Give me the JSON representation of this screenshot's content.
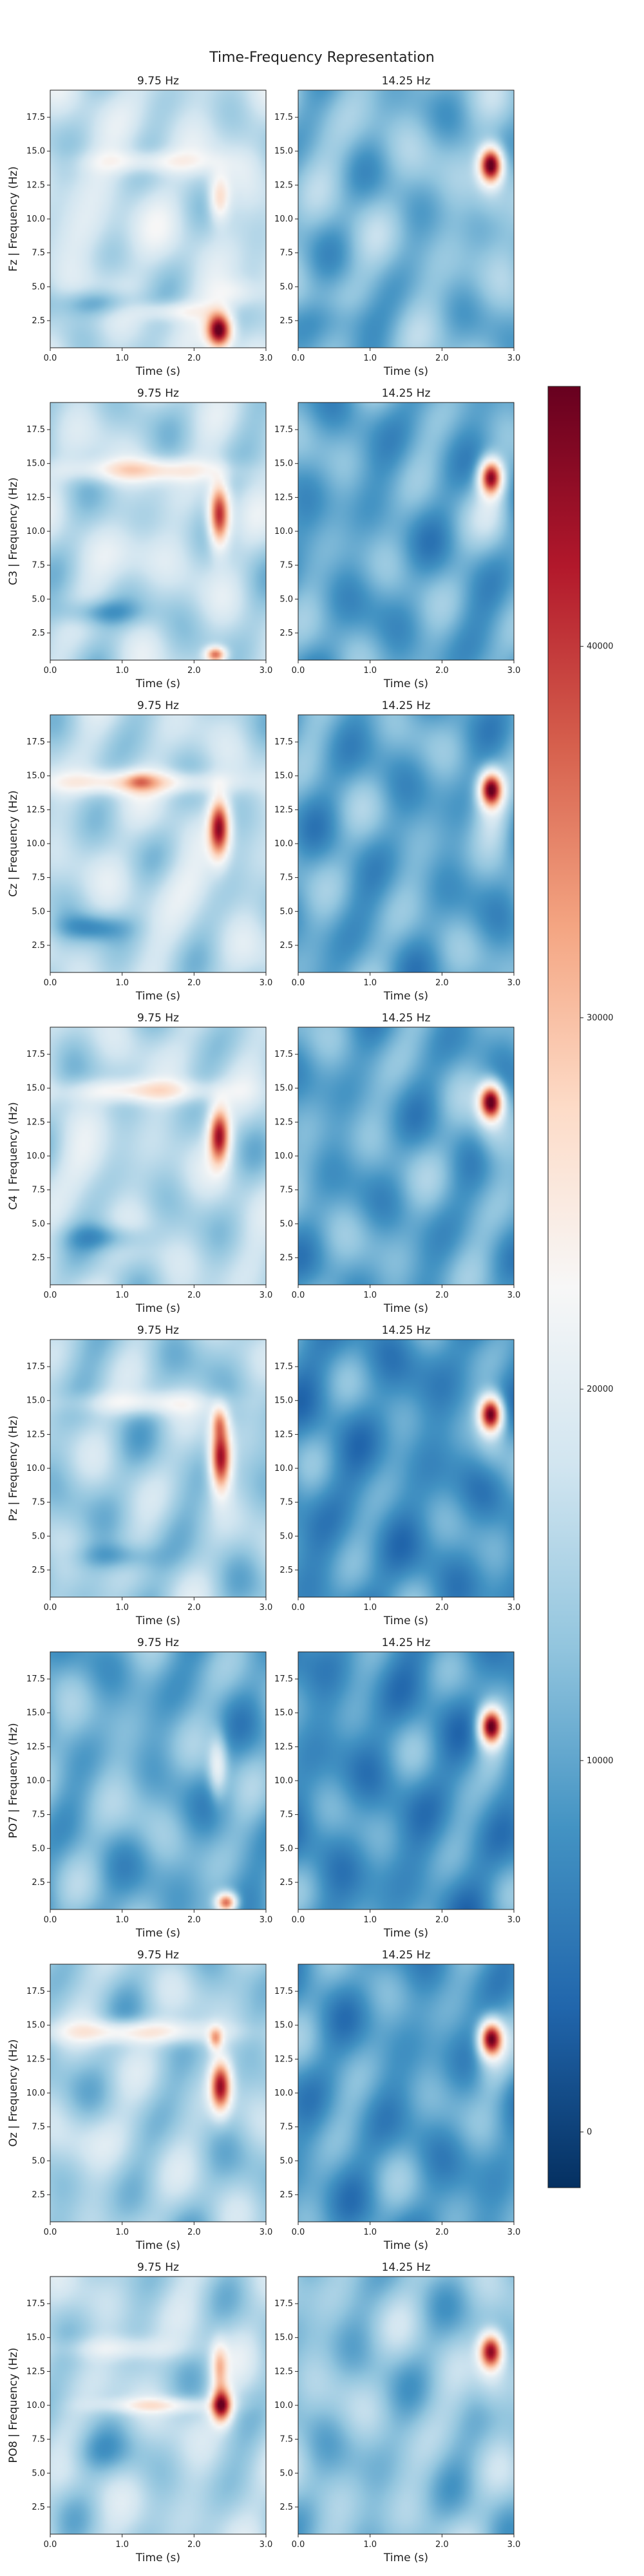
{
  "chart_data": {
    "type": "heatmap",
    "title": "Time-Frequency Representation",
    "xlabel": "Time (s)",
    "ylabel_suffix": " | Frequency (Hz)",
    "xlim": [
      0,
      3
    ],
    "ylim": [
      0.5,
      19.5
    ],
    "x_ticks": [
      "0.0",
      "1.0",
      "2.0",
      "3.0"
    ],
    "y_ticks": [
      "2.5",
      "5.0",
      "7.5",
      "10.0",
      "12.5",
      "15.0",
      "17.5"
    ],
    "x_tick_values": [
      0,
      1,
      2,
      3
    ],
    "y_tick_values": [
      2.5,
      5,
      7.5,
      10,
      12.5,
      15,
      17.5
    ],
    "colormap": "RdBu_r",
    "colorbar": {
      "ticks": [
        "0",
        "10000",
        "20000",
        "30000",
        "40000"
      ],
      "tick_values": [
        0,
        10000,
        20000,
        30000,
        40000
      ],
      "range": [
        -1500,
        47000
      ]
    },
    "columns": [
      "9.75 Hz",
      "14.25 Hz"
    ],
    "rows": [
      {
        "channel": "Fz",
        "panels": [
          {
            "title": "9.75 Hz",
            "base": 0.38,
            "blobs": [
              {
                "t": 2.35,
                "f": 11.5,
                "st": 0.1,
                "sf": 1.2,
                "a": 0.25
              },
              {
                "t": 2.35,
                "f": 1.8,
                "st": 0.12,
                "sf": 0.9,
                "a": 0.65
              },
              {
                "t": 1.4,
                "f": 14.2,
                "st": 0.6,
                "sf": 0.6,
                "a": 0.15
              },
              {
                "t": 2.6,
                "f": 4.5,
                "st": 0.25,
                "sf": 0.8,
                "a": 0.12
              },
              {
                "t": 1.7,
                "f": 3.2,
                "st": 0.35,
                "sf": 0.5,
                "a": 0.14
              },
              {
                "t": 0.6,
                "f": 9.0,
                "st": 0.35,
                "sf": 1.4,
                "a": 0.07
              },
              {
                "t": 0.7,
                "f": 3.8,
                "st": 0.4,
                "sf": 0.7,
                "a": -0.16
              }
            ]
          },
          {
            "title": "14.25 Hz",
            "base": 0.28,
            "blobs": [
              {
                "t": 2.68,
                "f": 14.0,
                "st": 0.11,
                "sf": 0.9,
                "a": 0.72
              },
              {
                "t": 2.7,
                "f": 12.5,
                "st": 0.18,
                "sf": 1.8,
                "a": 0.12
              },
              {
                "t": 0.5,
                "f": 2.5,
                "st": 0.4,
                "sf": 1.2,
                "a": -0.1
              }
            ]
          }
        ]
      },
      {
        "channel": "C3",
        "panels": [
          {
            "title": "9.75 Hz",
            "base": 0.36,
            "blobs": [
              {
                "t": 2.35,
                "f": 11.2,
                "st": 0.1,
                "sf": 1.6,
                "a": 0.58
              },
              {
                "t": 1.3,
                "f": 14.5,
                "st": 0.75,
                "sf": 0.6,
                "a": 0.22
              },
              {
                "t": 2.3,
                "f": 0.9,
                "st": 0.1,
                "sf": 0.4,
                "a": 0.45
              },
              {
                "t": 0.7,
                "f": 4.0,
                "st": 0.4,
                "sf": 0.7,
                "a": -0.15
              },
              {
                "t": 1.2,
                "f": 8.0,
                "st": 0.4,
                "sf": 1.5,
                "a": 0.07
              }
            ]
          },
          {
            "title": "14.25 Hz",
            "base": 0.24,
            "blobs": [
              {
                "t": 2.68,
                "f": 14.0,
                "st": 0.11,
                "sf": 0.9,
                "a": 0.68
              },
              {
                "t": 2.7,
                "f": 12.0,
                "st": 0.18,
                "sf": 1.8,
                "a": 0.12
              }
            ]
          }
        ]
      },
      {
        "channel": "Cz",
        "panels": [
          {
            "title": "9.75 Hz",
            "base": 0.36,
            "blobs": [
              {
                "t": 2.35,
                "f": 11.2,
                "st": 0.1,
                "sf": 1.5,
                "a": 0.58
              },
              {
                "t": 1.2,
                "f": 14.5,
                "st": 0.85,
                "sf": 0.6,
                "a": 0.25
              },
              {
                "t": 1.25,
                "f": 14.6,
                "st": 0.12,
                "sf": 0.4,
                "a": 0.12
              },
              {
                "t": 0.6,
                "f": 3.8,
                "st": 0.35,
                "sf": 0.7,
                "a": -0.15
              },
              {
                "t": 1.8,
                "f": 7.0,
                "st": 0.4,
                "sf": 1.5,
                "a": 0.07
              }
            ]
          },
          {
            "title": "14.25 Hz",
            "base": 0.24,
            "blobs": [
              {
                "t": 2.68,
                "f": 14.0,
                "st": 0.11,
                "sf": 0.9,
                "a": 0.7
              },
              {
                "t": 2.7,
                "f": 12.0,
                "st": 0.18,
                "sf": 1.8,
                "a": 0.12
              }
            ]
          }
        ]
      },
      {
        "channel": "C4",
        "panels": [
          {
            "title": "9.75 Hz",
            "base": 0.36,
            "blobs": [
              {
                "t": 2.35,
                "f": 11.5,
                "st": 0.1,
                "sf": 1.4,
                "a": 0.56
              },
              {
                "t": 1.3,
                "f": 14.8,
                "st": 0.7,
                "sf": 0.6,
                "a": 0.22
              },
              {
                "t": 0.8,
                "f": 4.0,
                "st": 0.4,
                "sf": 0.7,
                "a": -0.14
              },
              {
                "t": 0.5,
                "f": 9.5,
                "st": 0.3,
                "sf": 1.5,
                "a": 0.06
              }
            ]
          },
          {
            "title": "14.25 Hz",
            "base": 0.24,
            "blobs": [
              {
                "t": 2.68,
                "f": 14.0,
                "st": 0.11,
                "sf": 0.9,
                "a": 0.72
              },
              {
                "t": 2.7,
                "f": 12.0,
                "st": 0.18,
                "sf": 1.8,
                "a": 0.12
              }
            ]
          }
        ]
      },
      {
        "channel": "Pz",
        "panels": [
          {
            "title": "9.75 Hz",
            "base": 0.33,
            "blobs": [
              {
                "t": 2.37,
                "f": 10.8,
                "st": 0.1,
                "sf": 1.7,
                "a": 0.62
              },
              {
                "t": 2.35,
                "f": 13.5,
                "st": 0.08,
                "sf": 0.8,
                "a": 0.25
              },
              {
                "t": 1.3,
                "f": 14.8,
                "st": 0.7,
                "sf": 0.6,
                "a": 0.15
              },
              {
                "t": 0.9,
                "f": 3.5,
                "st": 0.4,
                "sf": 0.7,
                "a": -0.12
              }
            ]
          },
          {
            "title": "14.25 Hz",
            "base": 0.2,
            "blobs": [
              {
                "t": 2.68,
                "f": 14.0,
                "st": 0.11,
                "sf": 0.9,
                "a": 0.74
              },
              {
                "t": 2.7,
                "f": 12.0,
                "st": 0.18,
                "sf": 1.8,
                "a": 0.12
              }
            ]
          }
        ]
      },
      {
        "channel": "PO7",
        "panels": [
          {
            "title": "9.75 Hz",
            "base": 0.25,
            "blobs": [
              {
                "t": 2.33,
                "f": 11.0,
                "st": 0.09,
                "sf": 1.6,
                "a": 0.22
              },
              {
                "t": 2.45,
                "f": 1.0,
                "st": 0.1,
                "sf": 0.5,
                "a": 0.55
              },
              {
                "t": 0.9,
                "f": 9.0,
                "st": 0.5,
                "sf": 3.0,
                "a": 0.04
              }
            ]
          },
          {
            "title": "14.25 Hz",
            "base": 0.2,
            "blobs": [
              {
                "t": 2.68,
                "f": 14.0,
                "st": 0.11,
                "sf": 0.9,
                "a": 0.72
              },
              {
                "t": 2.7,
                "f": 12.5,
                "st": 0.18,
                "sf": 1.8,
                "a": 0.12
              }
            ]
          }
        ]
      },
      {
        "channel": "Oz",
        "panels": [
          {
            "title": "9.75 Hz",
            "base": 0.33,
            "blobs": [
              {
                "t": 2.37,
                "f": 10.5,
                "st": 0.1,
                "sf": 1.3,
                "a": 0.58
              },
              {
                "t": 2.3,
                "f": 14.0,
                "st": 0.07,
                "sf": 0.6,
                "a": 0.3
              },
              {
                "t": 1.2,
                "f": 14.5,
                "st": 0.8,
                "sf": 0.6,
                "a": 0.24
              },
              {
                "t": 0.7,
                "f": 6.5,
                "st": 0.4,
                "sf": 1.5,
                "a": 0.06
              }
            ]
          },
          {
            "title": "14.25 Hz",
            "base": 0.22,
            "blobs": [
              {
                "t": 2.68,
                "f": 14.0,
                "st": 0.11,
                "sf": 0.9,
                "a": 0.7
              },
              {
                "t": 2.7,
                "f": 12.0,
                "st": 0.18,
                "sf": 1.8,
                "a": 0.12
              }
            ]
          }
        ]
      },
      {
        "channel": "PO8",
        "panels": [
          {
            "title": "9.75 Hz",
            "base": 0.35,
            "blobs": [
              {
                "t": 2.38,
                "f": 10.0,
                "st": 0.1,
                "sf": 0.9,
                "a": 0.6
              },
              {
                "t": 2.35,
                "f": 12.8,
                "st": 0.08,
                "sf": 1.2,
                "a": 0.28
              },
              {
                "t": 1.5,
                "f": 10.0,
                "st": 0.55,
                "sf": 0.4,
                "a": 0.18
              },
              {
                "t": 1.0,
                "f": 14.2,
                "st": 0.6,
                "sf": 0.6,
                "a": 0.12
              },
              {
                "t": 0.6,
                "f": 6.5,
                "st": 0.35,
                "sf": 1.2,
                "a": -0.1
              }
            ]
          },
          {
            "title": "14.25 Hz",
            "base": 0.3,
            "blobs": [
              {
                "t": 2.68,
                "f": 14.0,
                "st": 0.11,
                "sf": 0.9,
                "a": 0.62
              },
              {
                "t": 2.7,
                "f": 12.0,
                "st": 0.18,
                "sf": 1.8,
                "a": 0.12
              }
            ]
          }
        ]
      }
    ]
  }
}
